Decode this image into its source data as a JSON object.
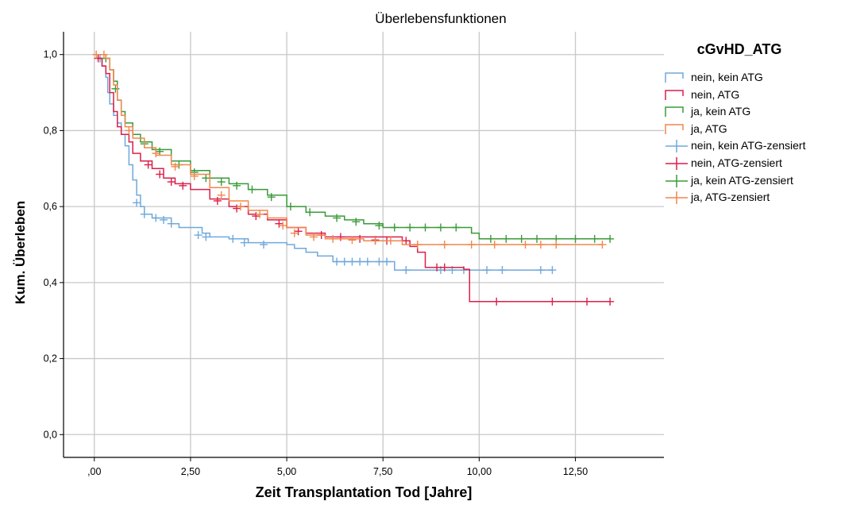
{
  "chart_data": {
    "type": "line",
    "title": "Überlebensfunktionen",
    "xlabel": "Zeit Transplantation Tod [Jahre]",
    "ylabel": "Kum. Überleben",
    "xlim": [
      -0.8,
      14.8
    ],
    "ylim": [
      -0.06,
      1.06
    ],
    "x_ticks": [
      0,
      2.5,
      5,
      7.5,
      10,
      12.5
    ],
    "x_tick_labels": [
      ",00",
      "2,50",
      "5,00",
      "7,50",
      "10,00",
      "12,50"
    ],
    "y_ticks": [
      0,
      0.2,
      0.4,
      0.6,
      0.8,
      1.0
    ],
    "y_tick_labels": [
      "0,0",
      "0,2",
      "0,4",
      "0,6",
      "0,8",
      "1,0"
    ],
    "grid": true,
    "legend_title": "cGvHD_ATG",
    "legend_position": "right",
    "legend_entries": [
      {
        "label": "nein, kein ATG",
        "color": "#6fa8dc",
        "kind": "step"
      },
      {
        "label": "nein, ATG",
        "color": "#dc1e48",
        "kind": "step"
      },
      {
        "label": "ja, kein ATG",
        "color": "#3a9a3a",
        "kind": "step"
      },
      {
        "label": "ja, ATG",
        "color": "#f0874c",
        "kind": "step"
      },
      {
        "label": "nein, kein ATG-zensiert",
        "color": "#6fa8dc",
        "kind": "censor"
      },
      {
        "label": "nein, ATG-zensiert",
        "color": "#dc1e48",
        "kind": "censor"
      },
      {
        "label": "ja, kein ATG-zensiert",
        "color": "#3a9a3a",
        "kind": "censor"
      },
      {
        "label": "ja, ATG-zensiert",
        "color": "#f0874c",
        "kind": "censor"
      }
    ],
    "series": [
      {
        "name": "nein, kein ATG",
        "color": "#6fa8dc",
        "steps": [
          [
            0,
            1.0
          ],
          [
            0.1,
            0.99
          ],
          [
            0.2,
            0.97
          ],
          [
            0.3,
            0.94
          ],
          [
            0.35,
            0.9
          ],
          [
            0.4,
            0.87
          ],
          [
            0.5,
            0.84
          ],
          [
            0.6,
            0.82
          ],
          [
            0.7,
            0.79
          ],
          [
            0.8,
            0.76
          ],
          [
            0.9,
            0.71
          ],
          [
            1.0,
            0.67
          ],
          [
            1.1,
            0.63
          ],
          [
            1.2,
            0.6
          ],
          [
            1.3,
            0.58
          ],
          [
            1.5,
            0.57
          ],
          [
            2.0,
            0.555
          ],
          [
            2.2,
            0.545
          ],
          [
            2.8,
            0.53
          ],
          [
            3.0,
            0.52
          ],
          [
            3.5,
            0.515
          ],
          [
            4.0,
            0.505
          ],
          [
            5.0,
            0.5
          ],
          [
            5.2,
            0.49
          ],
          [
            5.5,
            0.48
          ],
          [
            5.8,
            0.47
          ],
          [
            6.2,
            0.455
          ],
          [
            6.5,
            0.455
          ],
          [
            7.8,
            0.433
          ],
          [
            11.9,
            0.433
          ]
        ],
        "censored": [
          [
            0.15,
            0.99
          ],
          [
            1.1,
            0.61
          ],
          [
            1.3,
            0.58
          ],
          [
            1.6,
            0.57
          ],
          [
            1.8,
            0.565
          ],
          [
            2.0,
            0.555
          ],
          [
            2.7,
            0.525
          ],
          [
            2.9,
            0.52
          ],
          [
            3.6,
            0.515
          ],
          [
            3.9,
            0.505
          ],
          [
            4.4,
            0.5
          ],
          [
            6.3,
            0.455
          ],
          [
            6.5,
            0.455
          ],
          [
            6.7,
            0.455
          ],
          [
            6.9,
            0.455
          ],
          [
            7.1,
            0.455
          ],
          [
            7.4,
            0.455
          ],
          [
            7.6,
            0.455
          ],
          [
            8.1,
            0.433
          ],
          [
            9.0,
            0.433
          ],
          [
            9.3,
            0.433
          ],
          [
            9.6,
            0.433
          ],
          [
            10.2,
            0.433
          ],
          [
            10.6,
            0.433
          ],
          [
            11.6,
            0.433
          ],
          [
            11.9,
            0.433
          ]
        ]
      },
      {
        "name": "nein, ATG",
        "color": "#dc1e48",
        "steps": [
          [
            0,
            1.0
          ],
          [
            0.1,
            0.99
          ],
          [
            0.2,
            0.97
          ],
          [
            0.3,
            0.95
          ],
          [
            0.4,
            0.9
          ],
          [
            0.5,
            0.85
          ],
          [
            0.6,
            0.81
          ],
          [
            0.7,
            0.79
          ],
          [
            0.9,
            0.77
          ],
          [
            1.0,
            0.74
          ],
          [
            1.2,
            0.72
          ],
          [
            1.5,
            0.7
          ],
          [
            1.8,
            0.675
          ],
          [
            2.1,
            0.66
          ],
          [
            2.5,
            0.645
          ],
          [
            3.0,
            0.62
          ],
          [
            3.5,
            0.6
          ],
          [
            4.0,
            0.58
          ],
          [
            4.5,
            0.565
          ],
          [
            5.0,
            0.545
          ],
          [
            5.5,
            0.53
          ],
          [
            6.0,
            0.52
          ],
          [
            8.0,
            0.51
          ],
          [
            8.2,
            0.495
          ],
          [
            8.4,
            0.48
          ],
          [
            8.6,
            0.44
          ],
          [
            9.2,
            0.44
          ],
          [
            9.6,
            0.435
          ],
          [
            9.75,
            0.35
          ],
          [
            13.4,
            0.35
          ]
        ],
        "censored": [
          [
            0.1,
            0.99
          ],
          [
            1.4,
            0.71
          ],
          [
            1.7,
            0.685
          ],
          [
            2.0,
            0.665
          ],
          [
            2.3,
            0.655
          ],
          [
            3.2,
            0.615
          ],
          [
            3.7,
            0.595
          ],
          [
            4.2,
            0.575
          ],
          [
            4.8,
            0.555
          ],
          [
            5.3,
            0.535
          ],
          [
            5.9,
            0.525
          ],
          [
            6.4,
            0.52
          ],
          [
            6.9,
            0.515
          ],
          [
            7.3,
            0.512
          ],
          [
            7.6,
            0.51
          ],
          [
            8.1,
            0.51
          ],
          [
            8.9,
            0.44
          ],
          [
            9.1,
            0.44
          ],
          [
            10.45,
            0.35
          ],
          [
            11.9,
            0.35
          ],
          [
            12.8,
            0.35
          ],
          [
            13.4,
            0.35
          ]
        ]
      },
      {
        "name": "ja, kein ATG",
        "color": "#3a9a3a",
        "steps": [
          [
            0,
            1.0
          ],
          [
            0.3,
            0.99
          ],
          [
            0.4,
            0.96
          ],
          [
            0.5,
            0.93
          ],
          [
            0.6,
            0.88
          ],
          [
            0.7,
            0.85
          ],
          [
            0.8,
            0.82
          ],
          [
            1.0,
            0.79
          ],
          [
            1.2,
            0.77
          ],
          [
            1.5,
            0.75
          ],
          [
            2.0,
            0.72
          ],
          [
            2.5,
            0.695
          ],
          [
            3.0,
            0.675
          ],
          [
            3.5,
            0.66
          ],
          [
            4.0,
            0.645
          ],
          [
            4.5,
            0.63
          ],
          [
            5.0,
            0.6
          ],
          [
            5.5,
            0.585
          ],
          [
            6.0,
            0.575
          ],
          [
            6.5,
            0.565
          ],
          [
            7.0,
            0.555
          ],
          [
            7.5,
            0.545
          ],
          [
            9.8,
            0.53
          ],
          [
            10.0,
            0.515
          ],
          [
            13.4,
            0.515
          ]
        ],
        "censored": [
          [
            0.3,
            0.99
          ],
          [
            0.55,
            0.91
          ],
          [
            1.3,
            0.765
          ],
          [
            1.7,
            0.745
          ],
          [
            2.2,
            0.71
          ],
          [
            2.6,
            0.69
          ],
          [
            2.9,
            0.675
          ],
          [
            3.3,
            0.665
          ],
          [
            3.7,
            0.655
          ],
          [
            4.1,
            0.645
          ],
          [
            4.6,
            0.625
          ],
          [
            5.1,
            0.6
          ],
          [
            5.6,
            0.585
          ],
          [
            6.3,
            0.57
          ],
          [
            6.8,
            0.56
          ],
          [
            7.4,
            0.55
          ],
          [
            7.8,
            0.545
          ],
          [
            8.2,
            0.545
          ],
          [
            8.6,
            0.545
          ],
          [
            9.0,
            0.545
          ],
          [
            9.4,
            0.545
          ],
          [
            10.3,
            0.515
          ],
          [
            10.7,
            0.515
          ],
          [
            11.1,
            0.515
          ],
          [
            11.5,
            0.515
          ],
          [
            12.0,
            0.515
          ],
          [
            12.5,
            0.515
          ],
          [
            13.0,
            0.515
          ],
          [
            13.4,
            0.515
          ]
        ]
      },
      {
        "name": "ja, ATG",
        "color": "#f0874c",
        "steps": [
          [
            0,
            1.0
          ],
          [
            0.3,
            0.99
          ],
          [
            0.4,
            0.96
          ],
          [
            0.5,
            0.92
          ],
          [
            0.6,
            0.88
          ],
          [
            0.7,
            0.84
          ],
          [
            0.8,
            0.81
          ],
          [
            1.0,
            0.78
          ],
          [
            1.3,
            0.755
          ],
          [
            1.6,
            0.735
          ],
          [
            2.0,
            0.71
          ],
          [
            2.5,
            0.685
          ],
          [
            3.0,
            0.65
          ],
          [
            3.5,
            0.615
          ],
          [
            4.0,
            0.59
          ],
          [
            4.5,
            0.57
          ],
          [
            5.0,
            0.545
          ],
          [
            5.5,
            0.525
          ],
          [
            6.0,
            0.515
          ],
          [
            7.0,
            0.51
          ],
          [
            8.0,
            0.5
          ],
          [
            13.2,
            0.5
          ]
        ],
        "censored": [
          [
            0.05,
            1.0
          ],
          [
            0.25,
            1.0
          ],
          [
            0.9,
            0.8
          ],
          [
            1.6,
            0.74
          ],
          [
            2.1,
            0.705
          ],
          [
            2.6,
            0.68
          ],
          [
            3.3,
            0.63
          ],
          [
            3.8,
            0.6
          ],
          [
            4.3,
            0.58
          ],
          [
            4.9,
            0.55
          ],
          [
            5.2,
            0.53
          ],
          [
            5.7,
            0.52
          ],
          [
            6.2,
            0.515
          ],
          [
            6.7,
            0.512
          ],
          [
            7.3,
            0.51
          ],
          [
            7.7,
            0.51
          ],
          [
            8.4,
            0.5
          ],
          [
            9.1,
            0.5
          ],
          [
            9.8,
            0.5
          ],
          [
            10.4,
            0.5
          ],
          [
            11.2,
            0.5
          ],
          [
            11.6,
            0.5
          ],
          [
            12.0,
            0.5
          ],
          [
            13.2,
            0.5
          ]
        ]
      }
    ]
  }
}
